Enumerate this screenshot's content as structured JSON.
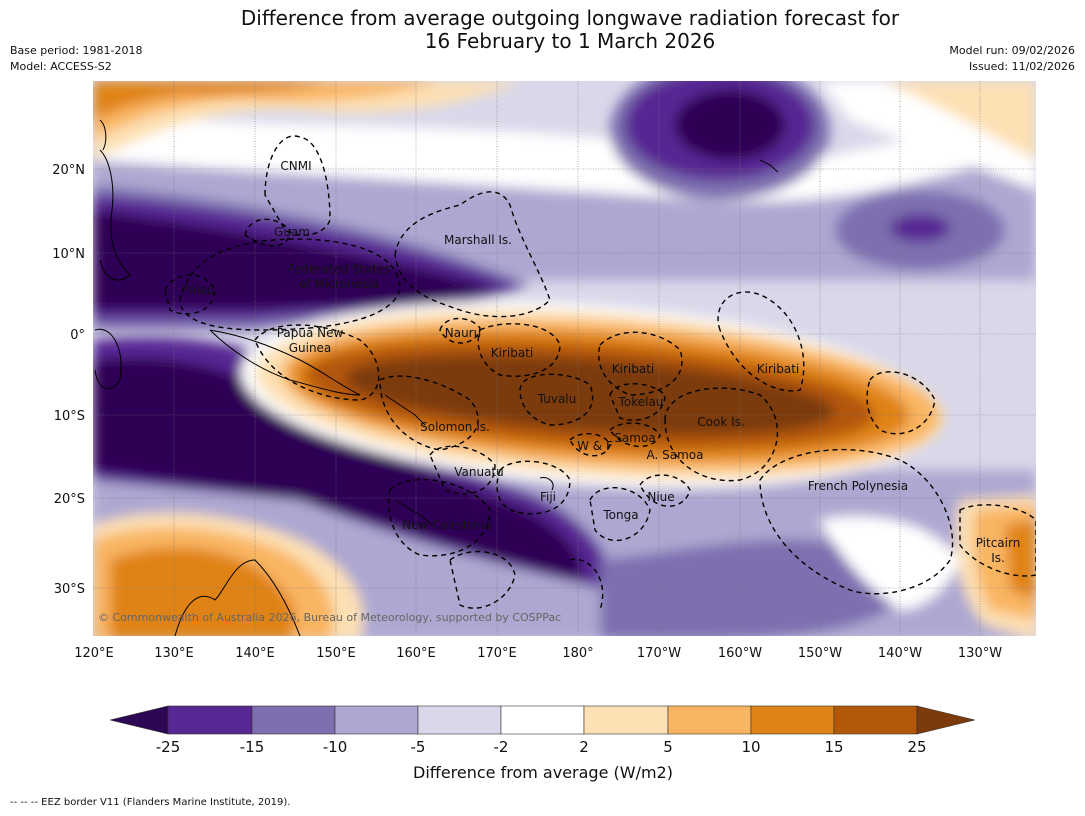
{
  "title_line1": "Difference from average outgoing longwave radiation forecast for",
  "title_line2": "16 February to 1 March 2026",
  "meta_left": [
    "Base period: 1981-2018",
    "Model: ACCESS-S2"
  ],
  "meta_right": [
    "Model run: 09/02/2026",
    "Issued: 11/02/2026"
  ],
  "lat_labels": [
    "20°N",
    "10°N",
    "0°",
    "10°S",
    "20°S",
    "30°S"
  ],
  "lon_labels": [
    "120°E",
    "130°E",
    "140°E",
    "150°E",
    "160°E",
    "170°E",
    "180°",
    "170°W",
    "160°W",
    "150°W",
    "140°W",
    "130°W"
  ],
  "places": [
    "CNMI",
    "Guam",
    "Marshall Is.",
    "Federated States",
    "of Micronesia",
    "Palau",
    "Papua New",
    "Guinea",
    "Nauru",
    "Kiribati",
    "Kiribati",
    "Kiribati",
    "Tuvalu",
    "Tokelau",
    "Cook Is.",
    "Solomon Is.",
    "Samoa",
    "W & F",
    "A. Samoa",
    "Vanuatu",
    "Fiji",
    "Niue",
    "French Polynesia",
    "Tonga",
    "New Caledonia",
    "Pitcairn",
    "Is."
  ],
  "copyright": "© Commonwealth of Australia 2026, Bureau of Meteorology, supported by COSPPac",
  "colorbar": {
    "ticks": [
      "-25",
      "-15",
      "-10",
      "-5",
      "-2",
      "2",
      "5",
      "10",
      "15",
      "25"
    ],
    "colors": [
      "#2d0654",
      "#572893",
      "#7e6fb0",
      "#ada8d1",
      "#d9d8ea",
      "#ffffff",
      "#fde0b4",
      "#f9b562",
      "#e08316",
      "#b35709",
      "#7c3a0d"
    ],
    "label": "Difference from average (W/m2)"
  },
  "footer": "--  --  -- EEZ border V11 (Flanders Marine Institute, 2019)."
}
